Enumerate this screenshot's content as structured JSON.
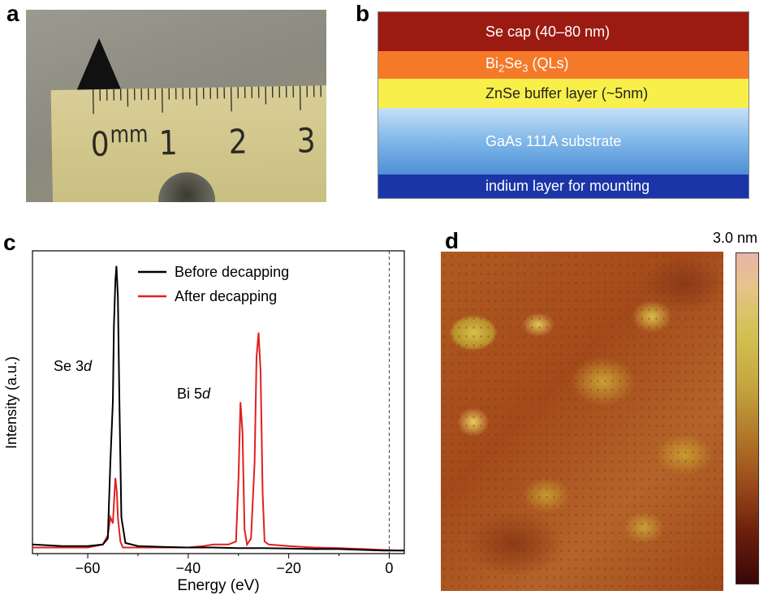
{
  "panels": {
    "a": {
      "label": "a",
      "ruler": {
        "unit": "mm",
        "numbers": [
          "0",
          "1",
          "2",
          "3"
        ]
      }
    },
    "b": {
      "label": "b",
      "layers": {
        "se_cap": "Se cap (40–80 nm)",
        "bi2se3": {
          "pre": "Bi",
          "sub1": "2",
          "mid": "Se",
          "sub2": "3",
          "post": " (QLs)"
        },
        "znse": "ZnSe buffer layer (~5nm)",
        "gaas": "GaAs 111A substrate",
        "indium": "indium layer for mounting"
      },
      "layer_colors": [
        "#9b1b12",
        "#f47a2a",
        "#f8ef4a",
        "#7fb7e8",
        "#1b35a8"
      ]
    },
    "c": {
      "label": "c",
      "legend": [
        "Before decapping",
        "After decapping"
      ],
      "annotations": {
        "se_peak": {
          "pre": "Se 3",
          "it": "d"
        },
        "bi_peak": {
          "pre": "Bi 5",
          "it": "d"
        }
      }
    },
    "d": {
      "label": "d",
      "colorbar_label": "3.0 nm"
    }
  },
  "chart_data": {
    "type": "line",
    "title": "",
    "xlabel": "Energy (eV)",
    "ylabel": "Intensity (a.u.)",
    "xlim": [
      -71,
      3
    ],
    "ylim": [
      0,
      1.0
    ],
    "xticks": [
      -60,
      -40,
      -20,
      0
    ],
    "xtick_labels": [
      "−60",
      "−40",
      "−20",
      "0"
    ],
    "reference_line_x": 0,
    "legend_position": "top-left",
    "series": [
      {
        "name": "Before decapping",
        "color": "#000000",
        "x": [
          -71,
          -65,
          -60,
          -57,
          -56,
          -55.5,
          -55,
          -54.8,
          -54.5,
          -54.3,
          -54,
          -53.7,
          -53.3,
          -52.5,
          -50,
          -45,
          -40,
          -35,
          -30,
          -25,
          -20,
          -15,
          -10,
          -5,
          -1,
          3
        ],
        "y": [
          0.03,
          0.025,
          0.025,
          0.03,
          0.05,
          0.3,
          0.5,
          0.75,
          0.9,
          0.95,
          0.85,
          0.5,
          0.12,
          0.035,
          0.025,
          0.022,
          0.02,
          0.02,
          0.018,
          0.018,
          0.017,
          0.015,
          0.015,
          0.012,
          0.01,
          0.01
        ]
      },
      {
        "name": "After decapping",
        "color": "#e02020",
        "x": [
          -71,
          -65,
          -60,
          -57,
          -56,
          -55.5,
          -55,
          -54.5,
          -54.2,
          -54,
          -53.5,
          -53,
          -50,
          -45,
          -40,
          -37,
          -35,
          -32,
          -30.5,
          -30,
          -29.6,
          -29.2,
          -28.8,
          -28.3,
          -27.5,
          -26.8,
          -26.4,
          -26,
          -25.6,
          -25.2,
          -24.8,
          -24,
          -20,
          -15,
          -10,
          -5,
          -1,
          3
        ],
        "y": [
          0.02,
          0.02,
          0.02,
          0.03,
          0.06,
          0.12,
          0.1,
          0.25,
          0.2,
          0.12,
          0.04,
          0.02,
          0.02,
          0.02,
          0.02,
          0.025,
          0.03,
          0.03,
          0.04,
          0.25,
          0.5,
          0.4,
          0.08,
          0.03,
          0.05,
          0.3,
          0.65,
          0.73,
          0.6,
          0.2,
          0.04,
          0.03,
          0.025,
          0.02,
          0.018,
          0.015,
          0.012,
          0.01
        ]
      }
    ]
  }
}
